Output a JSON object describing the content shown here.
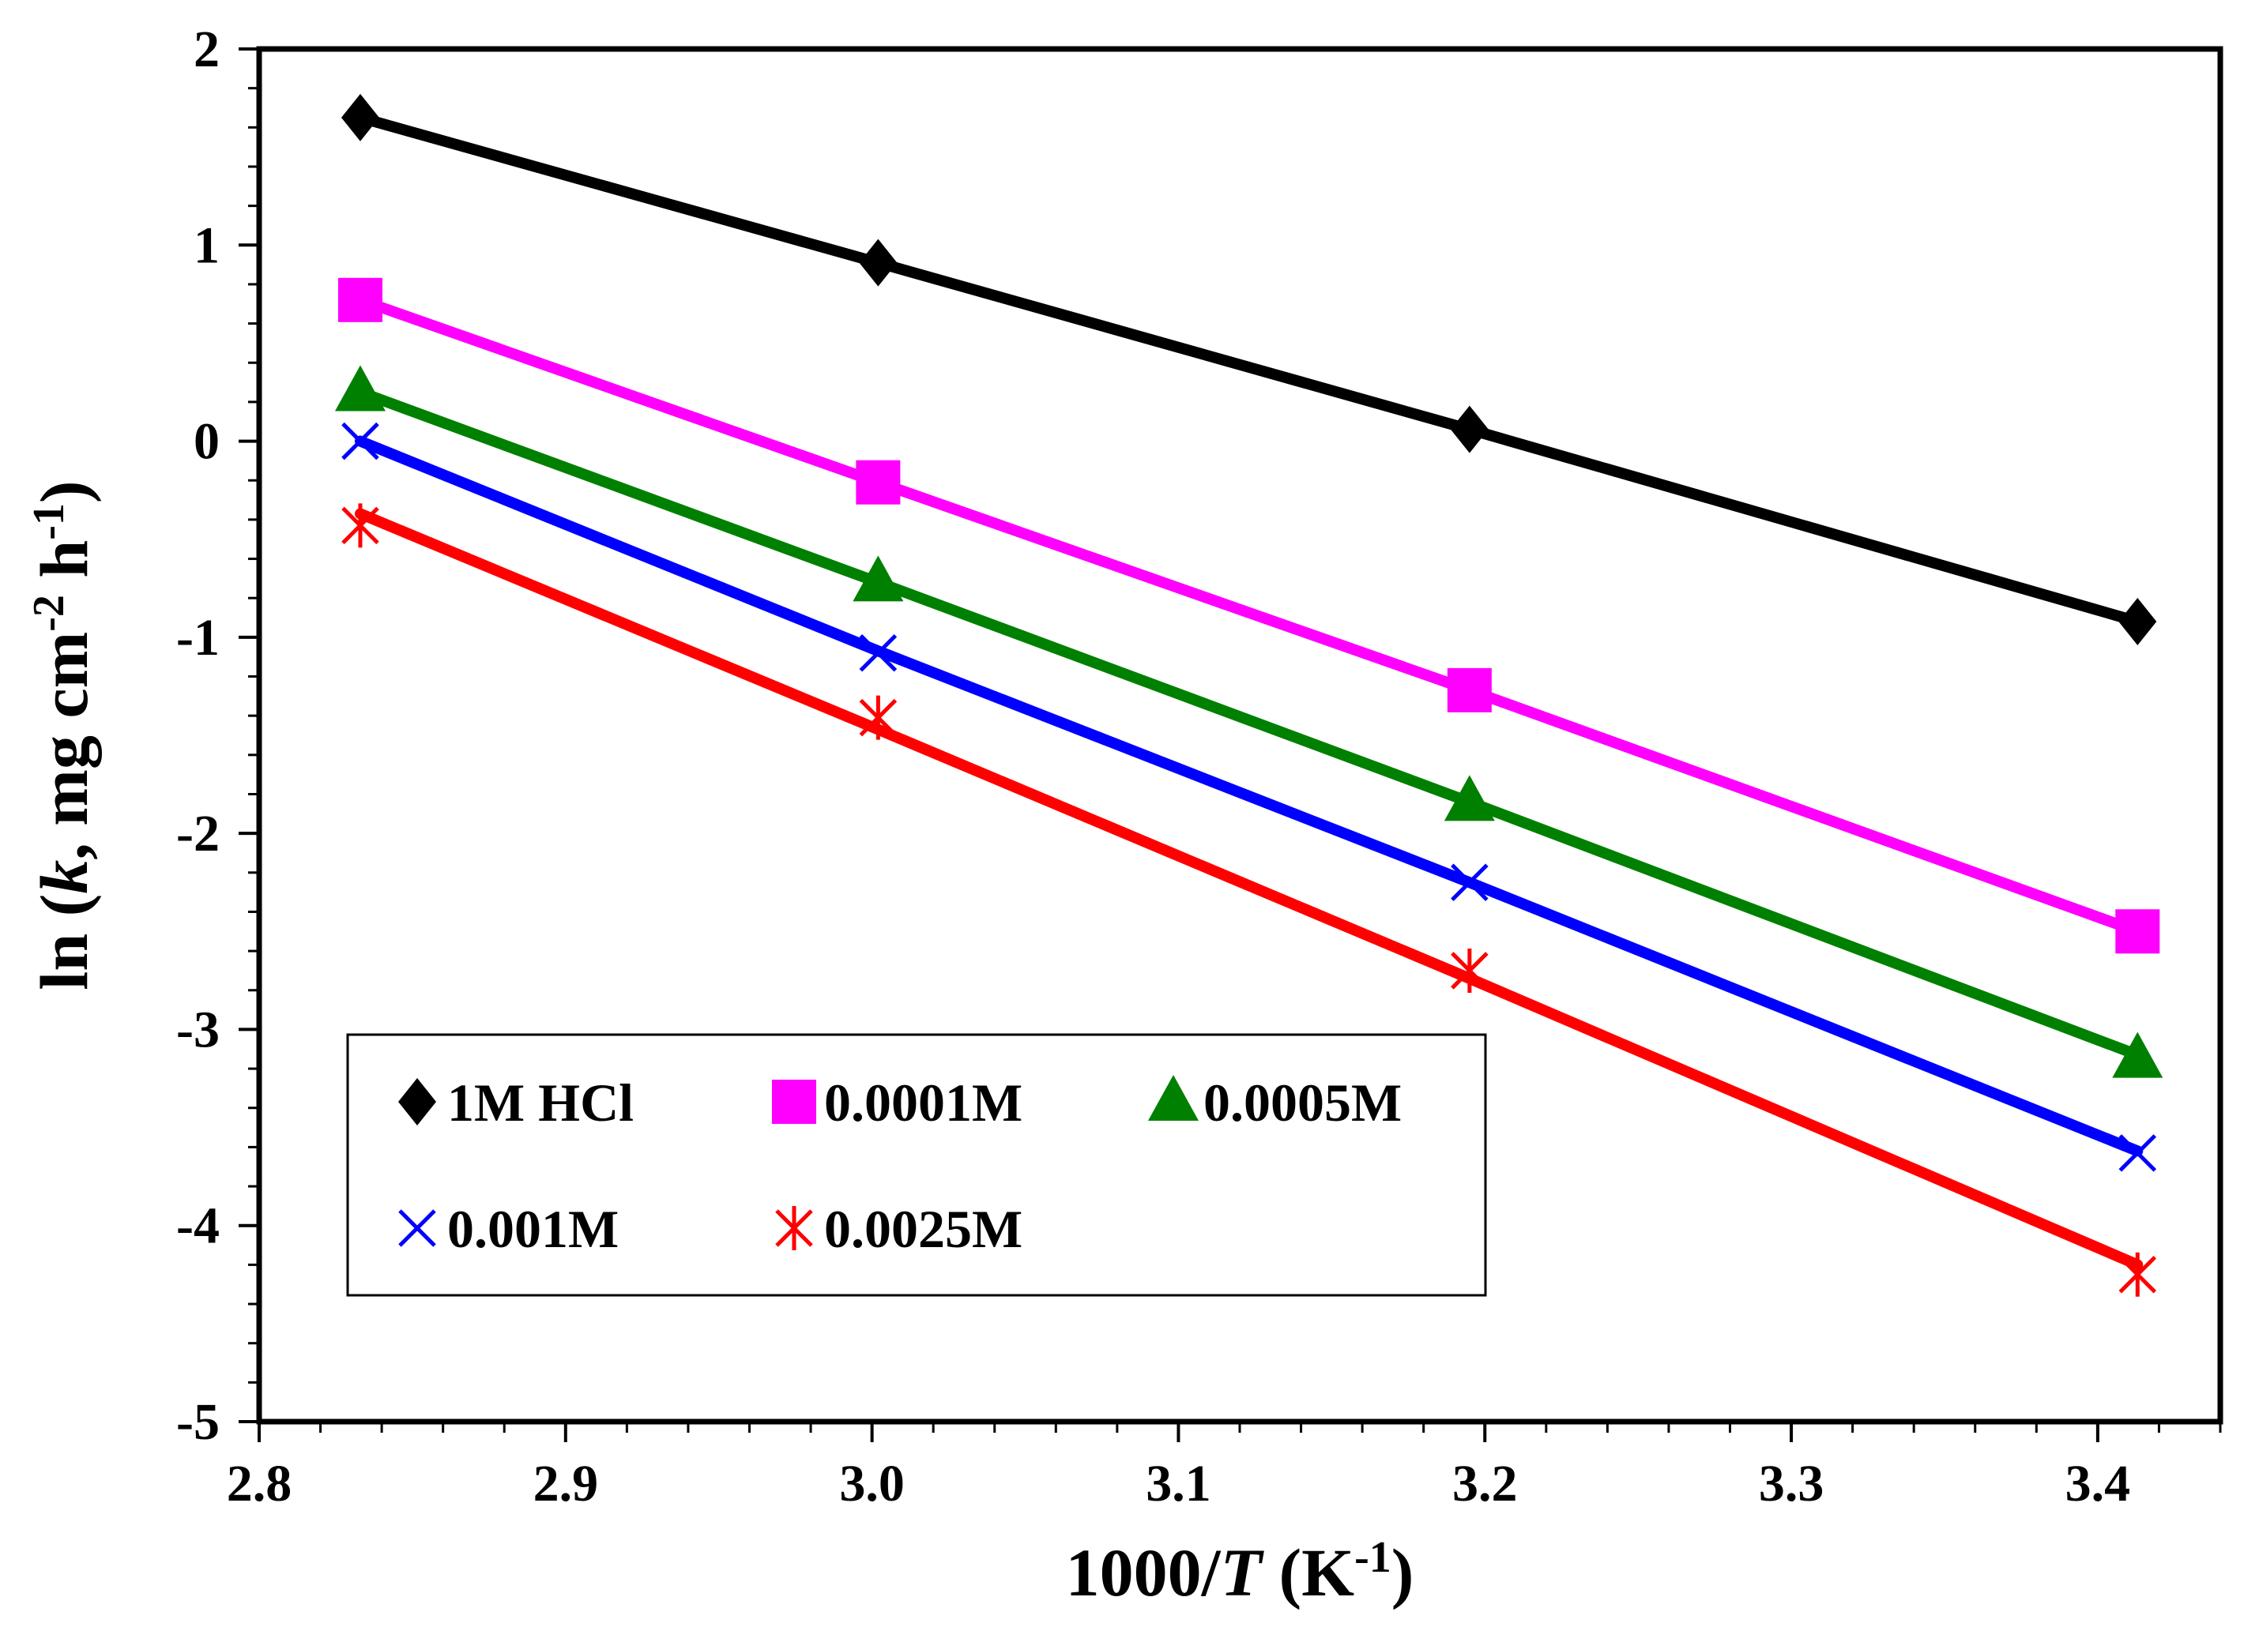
{
  "chart_data": {
    "type": "line",
    "title": "",
    "xlabel": {
      "prefix": "1000/",
      "italic": "T",
      "unit_open": " (K",
      "sup": "-1",
      "unit_close": ")"
    },
    "ylabel": {
      "prefix": "ln (",
      "italic": "k",
      "mid": ", mg cm",
      "sup1": "-2",
      "mid2": " h",
      "sup2": "-1",
      "close": ")"
    },
    "xlim": [
      2.8,
      3.44
    ],
    "ylim": [
      -5,
      2
    ],
    "x_ticks": [
      2.8,
      2.9,
      3.0,
      3.1,
      3.2,
      3.3,
      3.4
    ],
    "x_tick_labels": [
      "2.8",
      "2.9",
      "3.0",
      "3.1",
      "3.2",
      "3.3",
      "3.4"
    ],
    "y_ticks": [
      -5,
      -4,
      -3,
      -2,
      -1,
      0,
      1,
      2
    ],
    "y_tick_labels": [
      "-5",
      "-4",
      "-3",
      "-2",
      "-1",
      "0",
      "1",
      "2"
    ],
    "x": [
      2.833,
      3.002,
      3.195,
      3.413
    ],
    "series": [
      {
        "name": "1M HCl",
        "marker": "diamond",
        "color": "#000000",
        "values": [
          1.65,
          0.91,
          0.06,
          -0.92
        ],
        "fit": [
          1.65,
          0.91,
          0.06,
          -0.92
        ]
      },
      {
        "name": "0.0001M",
        "marker": "square",
        "color": "#ff00ff",
        "values": [
          0.72,
          -0.21,
          -1.27,
          -2.5
        ],
        "fit": [
          0.72,
          -0.21,
          -1.27,
          -2.5
        ]
      },
      {
        "name": "0.0005M",
        "marker": "triangle",
        "color": "#008000",
        "values": [
          0.25,
          -0.72,
          -1.84,
          -3.15
        ],
        "fit": [
          0.25,
          -0.72,
          -1.84,
          -3.13
        ]
      },
      {
        "name": "0.001M",
        "marker": "x",
        "color": "#0000ff",
        "values": [
          0.0,
          -1.08,
          -2.25,
          -3.63
        ],
        "fit": [
          0.0,
          -1.07,
          -2.25,
          -3.62
        ]
      },
      {
        "name": "0.0025M",
        "marker": "star",
        "color": "#ff0000",
        "values": [
          -0.43,
          -1.41,
          -2.7,
          -4.25
        ],
        "fit": [
          -0.37,
          -1.47,
          -2.74,
          -4.2
        ]
      }
    ],
    "legend": {
      "position": "bottom-left",
      "columns": 3
    },
    "grid": false
  }
}
